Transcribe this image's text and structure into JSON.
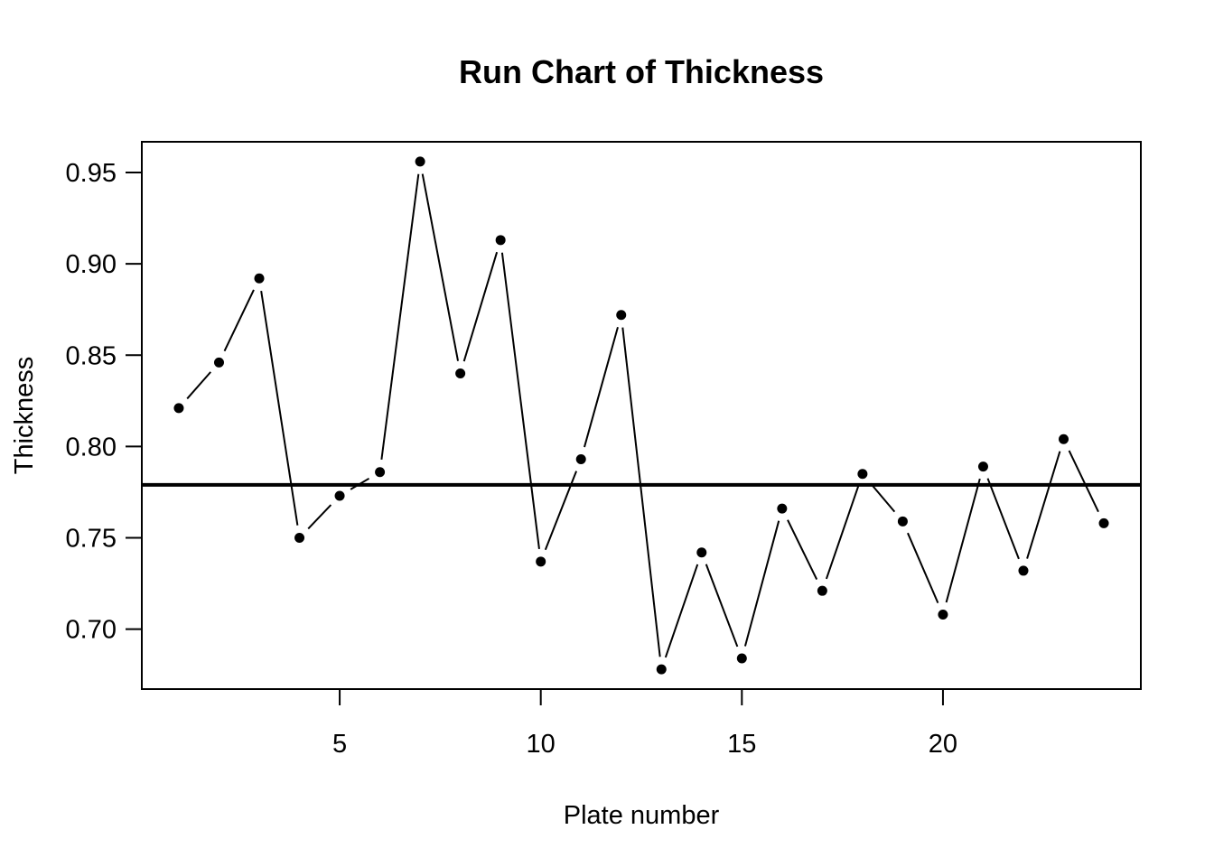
{
  "chart_data": {
    "type": "line",
    "title": "Run Chart of Thickness",
    "xlabel": "Plate number",
    "ylabel": "Thickness",
    "x": [
      1,
      2,
      3,
      4,
      5,
      6,
      7,
      8,
      9,
      10,
      11,
      12,
      13,
      14,
      15,
      16,
      17,
      18,
      19,
      20,
      21,
      22,
      23,
      24
    ],
    "values": [
      0.821,
      0.846,
      0.892,
      0.75,
      0.773,
      0.786,
      0.956,
      0.84,
      0.913,
      0.737,
      0.793,
      0.872,
      0.678,
      0.742,
      0.684,
      0.766,
      0.721,
      0.785,
      0.759,
      0.708,
      0.789,
      0.732,
      0.804,
      0.758
    ],
    "center_line": 0.779,
    "xlim": [
      0.08,
      24.92
    ],
    "ylim": [
      0.6672,
      0.9668
    ],
    "x_ticks": [
      5,
      10,
      15,
      20
    ],
    "x_tick_labels": [
      "5",
      "10",
      "15",
      "20"
    ],
    "y_ticks": [
      0.7,
      0.75,
      0.8,
      0.85,
      0.9,
      0.95
    ],
    "y_tick_labels": [
      "0.70",
      "0.75",
      "0.80",
      "0.85",
      "0.90",
      "0.95"
    ],
    "grid": false,
    "series_color": "#000000"
  }
}
